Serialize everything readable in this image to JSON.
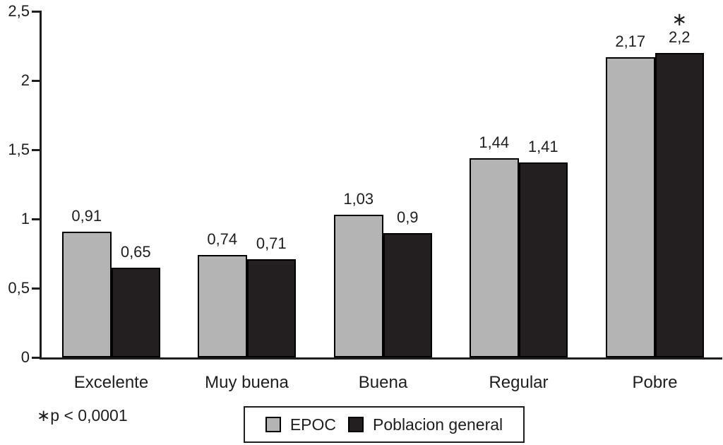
{
  "chart_data": {
    "type": "bar",
    "title": "",
    "xlabel": "",
    "ylabel": "",
    "categories": [
      "Excelente",
      "Muy buena",
      "Buena",
      "Regular",
      "Pobre"
    ],
    "series": [
      {
        "name": "EPOC",
        "color": "#b4b4b4",
        "values": [
          0.91,
          0.74,
          1.03,
          1.44,
          2.17
        ],
        "value_labels": [
          "0,91",
          "0,74",
          "1,03",
          "1,44",
          "2,17"
        ]
      },
      {
        "name": "Poblacion general",
        "color": "#231f20",
        "values": [
          0.65,
          0.71,
          0.9,
          1.41,
          2.2
        ],
        "value_labels": [
          "0,65",
          "0,71",
          "0,9",
          "1,41",
          "2,2"
        ]
      }
    ],
    "y_ticks": [
      {
        "value": 0,
        "label": "0"
      },
      {
        "value": 0.5,
        "label": "0,5"
      },
      {
        "value": 1,
        "label": "1"
      },
      {
        "value": 1.5,
        "label": "1,5"
      },
      {
        "value": 2,
        "label": "2"
      },
      {
        "value": 2.5,
        "label": "2,5"
      }
    ],
    "ylim": [
      0,
      2.5
    ],
    "grid": false,
    "legend_position": "bottom-center",
    "significance": {
      "category": "Pobre",
      "series": "Poblacion general",
      "symbol": "∗"
    }
  },
  "footnote": "∗p < 0,0001",
  "colors": {
    "axis": "#1e1e1e",
    "text": "#1e1e1e",
    "bar_border": "#000000",
    "epoc_gray": "#b4b4b4",
    "poblacion_black": "#231f20"
  }
}
